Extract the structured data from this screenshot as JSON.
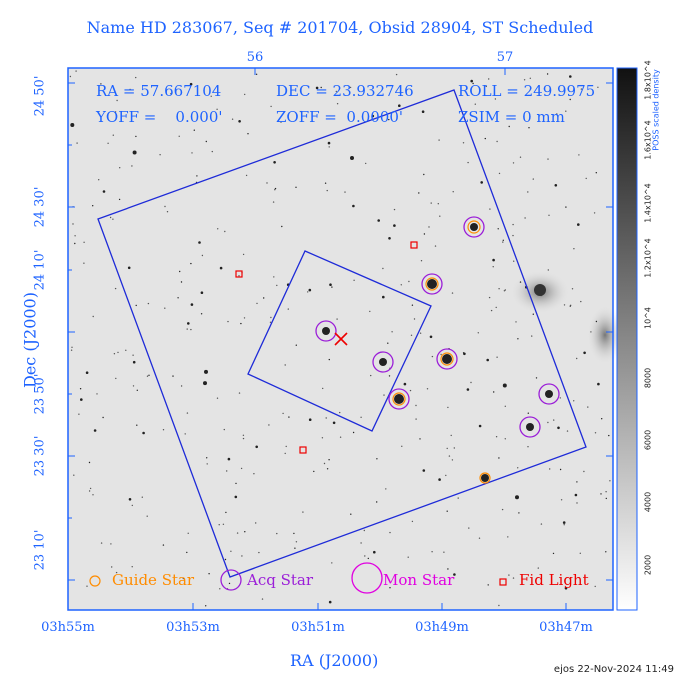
{
  "title": "Name HD 283067, Seq # 201704, Obsid 28904, ST Scheduled",
  "info": {
    "ra": "RA = 57.667104",
    "dec": "DEC = 23.932746",
    "roll": "ROLL = 249.9975",
    "yoff": "YOFF =    0.000'",
    "zoff": "ZOFF =  0.0000'",
    "zsim": "ZSIM = 0 mm"
  },
  "axes": {
    "xlabel": "RA (J2000)",
    "ylabel": "Dec (J2000)",
    "x_ticks_bottom": [
      "03h55m",
      "03h53m",
      "03h51m",
      "03h49m",
      "03h47m"
    ],
    "x_ticks_top": [
      "56",
      "57"
    ],
    "y_ticks": [
      "24 50'",
      "24 30'",
      "24 10'",
      "23 50'",
      "23 30'",
      "23 10'"
    ]
  },
  "colorbar": {
    "title": "POSS scaled density",
    "ticks": [
      "2000",
      "4000",
      "6000",
      "8000",
      "10^4",
      "1.2x10^4",
      "1.4x10^4",
      "1.6x10^4",
      "1.8x10^4"
    ]
  },
  "legend": {
    "guide": "Guide Star",
    "acq": "Acq Star",
    "mon": "Mon Star",
    "fid": "Fid Light"
  },
  "colors": {
    "axis": "#1e63ff",
    "guide": "#ff8c00",
    "acq": "#9b1fd8",
    "mon": "#e000e0",
    "fid": "#ee0000"
  },
  "footer": "ejos 22-Nov-2024 11:49"
}
